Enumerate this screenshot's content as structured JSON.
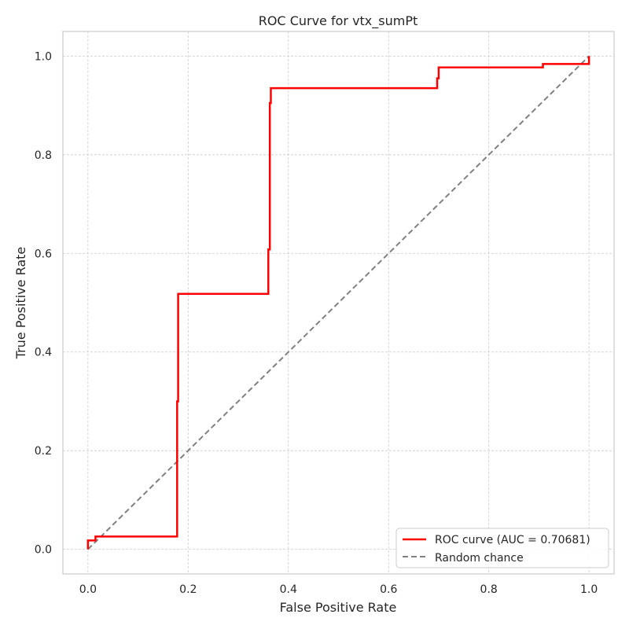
{
  "chart_data": {
    "type": "line",
    "title": "ROC Curve for vtx_sumPt",
    "xlabel": "False Positive Rate",
    "ylabel": "True Positive Rate",
    "xlim": [
      -0.05,
      1.05
    ],
    "ylim": [
      -0.05,
      1.05
    ],
    "xticks": [
      0.0,
      0.2,
      0.4,
      0.6,
      0.8,
      1.0
    ],
    "yticks": [
      0.0,
      0.2,
      0.4,
      0.6,
      0.8,
      1.0
    ],
    "xtick_labels": [
      "0.0",
      "0.2",
      "0.4",
      "0.6",
      "0.8",
      "1.0"
    ],
    "ytick_labels": [
      "0.0",
      "0.2",
      "0.4",
      "0.6",
      "0.8",
      "1.0"
    ],
    "grid": true,
    "legend_position": "lower-right",
    "series": [
      {
        "name": "ROC curve (AUC = 0.70681)",
        "color": "#ff0000",
        "style": "solid",
        "x": [
          0.0,
          0.0,
          0.015,
          0.015,
          0.178,
          0.178,
          0.18,
          0.18,
          0.36,
          0.36,
          0.363,
          0.363,
          0.365,
          0.365,
          0.697,
          0.697,
          0.7,
          0.7,
          0.908,
          0.908,
          1.0,
          1.0
        ],
        "y": [
          0.0,
          0.018,
          0.018,
          0.026,
          0.026,
          0.3,
          0.3,
          0.518,
          0.518,
          0.608,
          0.608,
          0.905,
          0.905,
          0.935,
          0.935,
          0.955,
          0.955,
          0.977,
          0.977,
          0.984,
          0.984,
          1.0
        ]
      },
      {
        "name": "Random chance",
        "color": "#808080",
        "style": "dashed",
        "x": [
          0.0,
          1.0
        ],
        "y": [
          0.0,
          1.0
        ]
      }
    ]
  }
}
